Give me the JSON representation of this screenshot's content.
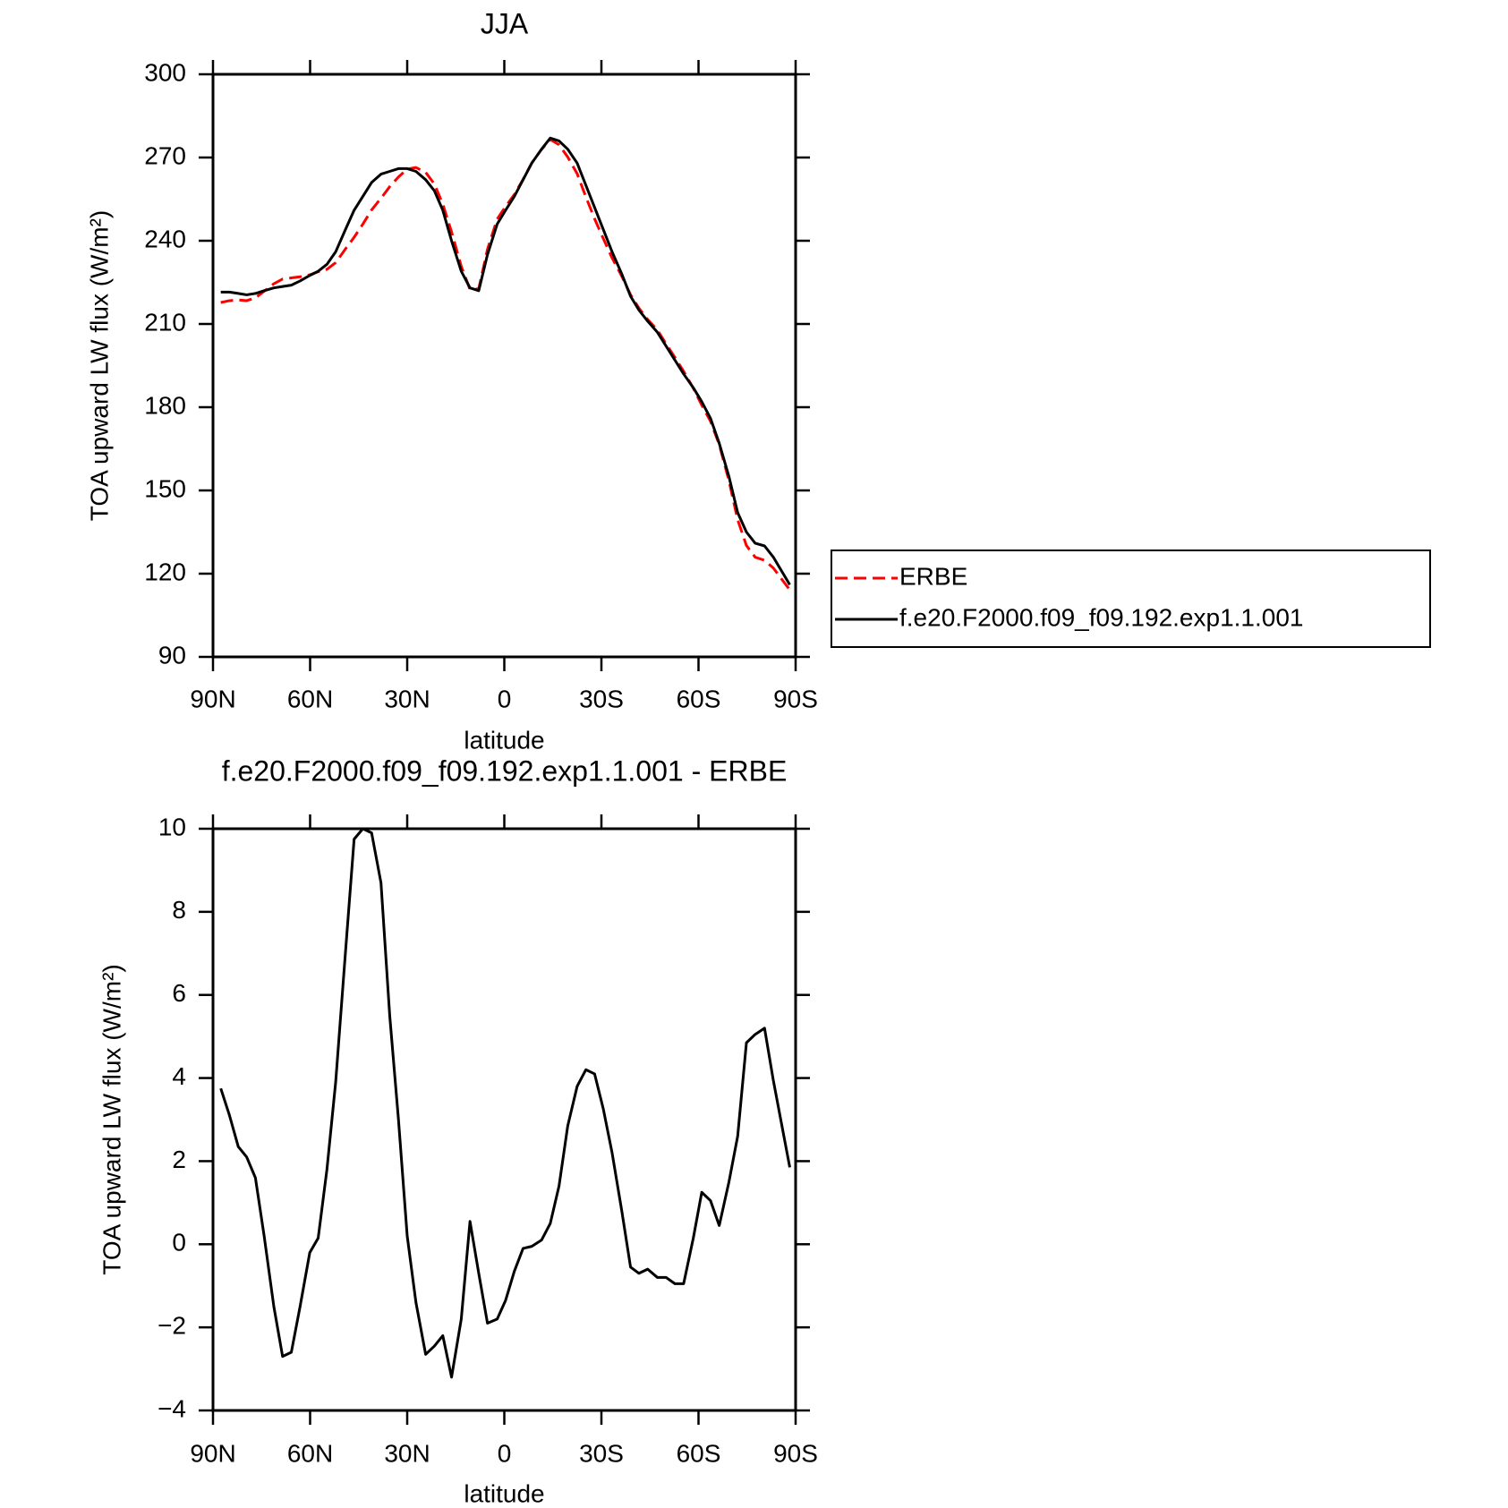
{
  "chart_data": [
    {
      "type": "line",
      "title": "JJA",
      "xlabel": "latitude",
      "ylabel": "TOA upward LW flux (W/m²)",
      "x": [
        87.6,
        84.9,
        82.2,
        79.6,
        76.9,
        74.2,
        71.2,
        68.5,
        65.8,
        63.1,
        60.1,
        57.5,
        54.8,
        52.1,
        49.1,
        46.4,
        43.7,
        41.0,
        38.1,
        35.4,
        32.7,
        30.0,
        27.3,
        24.3,
        21.6,
        19.0,
        16.3,
        13.3,
        10.6,
        7.9,
        5.2,
        2.2,
        -0.4,
        -3.1,
        -5.8,
        -8.5,
        -11.5,
        -14.2,
        -16.9,
        -19.6,
        -22.5,
        -25.2,
        -27.9,
        -30.6,
        -33.3,
        -36.3,
        -39.0,
        -41.6,
        -44.3,
        -47.3,
        -50.0,
        -52.7,
        -55.4,
        -58.4,
        -61.0,
        -63.7,
        -66.4,
        -69.4,
        -72.1,
        -74.8,
        -77.5,
        -80.4,
        -83.1,
        -88.2
      ],
      "series": [
        {
          "name": "ERBE",
          "color": "#ff0000",
          "linestyle": "dashed",
          "values": [
            217.75,
            218.4,
            218.65,
            218.4,
            219.4,
            221.8,
            224.5,
            226.2,
            226.6,
            227,
            227.7,
            228.85,
            229.7,
            232.1,
            237,
            241.25,
            246,
            251.1,
            255.3,
            259.5,
            263,
            265.8,
            266.4,
            264.65,
            260.45,
            253.2,
            243.2,
            230.8,
            222.45,
            222.7,
            236.9,
            247.8,
            252.35,
            256.65,
            262.1,
            268.05,
            272.9,
            276.5,
            274.6,
            270.15,
            264.2,
            255.8,
            247.9,
            240.75,
            233.8,
            227.2,
            220.55,
            215.7,
            211.6,
            207.8,
            202.8,
            197.95,
            192.95,
            186.85,
            180.75,
            174.95,
            166.55,
            153.5,
            139.4,
            130.15,
            125.95,
            124.8,
            122.05,
            114.15
          ]
        },
        {
          "name": "f.e20.F2000.f09_f09.192.exp1.1.001",
          "color": "#000000",
          "linestyle": "solid",
          "values": [
            221.5,
            221.5,
            221,
            220.5,
            221,
            222,
            223,
            223.5,
            224,
            225.5,
            227.5,
            229,
            231.5,
            236,
            244,
            251,
            256,
            261,
            264,
            265,
            266,
            266,
            265,
            262,
            258,
            251,
            240,
            229,
            223,
            222,
            235,
            246,
            251,
            256,
            262,
            268,
            273,
            277,
            276,
            273,
            268,
            260,
            252,
            244,
            236,
            228,
            220,
            215,
            211,
            207,
            202,
            197,
            192,
            187,
            182,
            176,
            167,
            155,
            142,
            135,
            131,
            130,
            126,
            116
          ]
        }
      ],
      "xlim": [
        90,
        -90
      ],
      "xticks": [
        {
          "value": 90,
          "label": "90N"
        },
        {
          "value": 60,
          "label": "60N"
        },
        {
          "value": 30,
          "label": "30N"
        },
        0,
        {
          "value": -30,
          "label": "30S"
        },
        {
          "value": -60,
          "label": "60S"
        },
        {
          "value": -90,
          "label": "90S"
        }
      ],
      "ylim": [
        90,
        300
      ],
      "yticks": [
        90,
        120,
        150,
        180,
        210,
        240,
        270,
        300
      ],
      "legend": "right"
    },
    {
      "type": "line",
      "title": "f.e20.F2000.f09_f09.192.exp1.1.001 - ERBE",
      "xlabel": "latitude",
      "ylabel": "TOA upward LW flux (W/m²)",
      "x": [
        87.6,
        84.9,
        82.2,
        79.6,
        76.9,
        74.2,
        71.2,
        68.5,
        65.8,
        63.1,
        60.1,
        57.5,
        54.8,
        52.1,
        49.1,
        46.4,
        43.7,
        41.0,
        38.1,
        35.4,
        32.7,
        30.0,
        27.3,
        24.3,
        21.6,
        19.0,
        16.3,
        13.3,
        10.6,
        7.9,
        5.2,
        2.2,
        -0.4,
        -3.1,
        -5.8,
        -8.5,
        -11.5,
        -14.2,
        -16.9,
        -19.6,
        -22.5,
        -25.2,
        -27.9,
        -30.6,
        -33.3,
        -36.3,
        -39.0,
        -41.6,
        -44.3,
        -47.3,
        -50.0,
        -52.7,
        -55.4,
        -58.4,
        -61.0,
        -63.7,
        -66.4,
        -69.4,
        -72.1,
        -74.8,
        -77.5,
        -80.4,
        -83.1,
        -88.2
      ],
      "values": [
        3.75,
        3.1,
        2.35,
        2.1,
        1.6,
        0.2,
        -1.5,
        -2.7,
        -2.6,
        -1.5,
        -0.2,
        0.15,
        1.8,
        3.9,
        7.0,
        9.75,
        10.0,
        9.9,
        8.7,
        5.5,
        3.0,
        0.2,
        -1.4,
        -2.65,
        -2.45,
        -2.2,
        -3.2,
        -1.8,
        0.55,
        -0.7,
        -1.9,
        -1.8,
        -1.35,
        -0.65,
        -0.1,
        -0.05,
        0.1,
        0.5,
        1.4,
        2.85,
        3.8,
        4.2,
        4.1,
        3.25,
        2.2,
        0.8,
        -0.55,
        -0.7,
        -0.6,
        -0.8,
        -0.8,
        -0.95,
        -0.95,
        0.15,
        1.25,
        1.05,
        0.45,
        1.5,
        2.6,
        4.85,
        5.05,
        5.2,
        3.95,
        1.85
      ],
      "color": "#000000",
      "xlim": [
        90,
        -90
      ],
      "xticks": [
        {
          "value": 90,
          "label": "90N"
        },
        {
          "value": 60,
          "label": "60N"
        },
        {
          "value": 30,
          "label": "30N"
        },
        0,
        {
          "value": -30,
          "label": "30S"
        },
        {
          "value": -60,
          "label": "60S"
        },
        {
          "value": -90,
          "label": "90S"
        }
      ],
      "ylim": [
        -4,
        10
      ],
      "yticks": [
        {
          "value": -4,
          "label": "−4"
        },
        {
          "value": -2,
          "label": "−2"
        },
        0,
        2,
        4,
        6,
        8,
        10
      ]
    }
  ]
}
